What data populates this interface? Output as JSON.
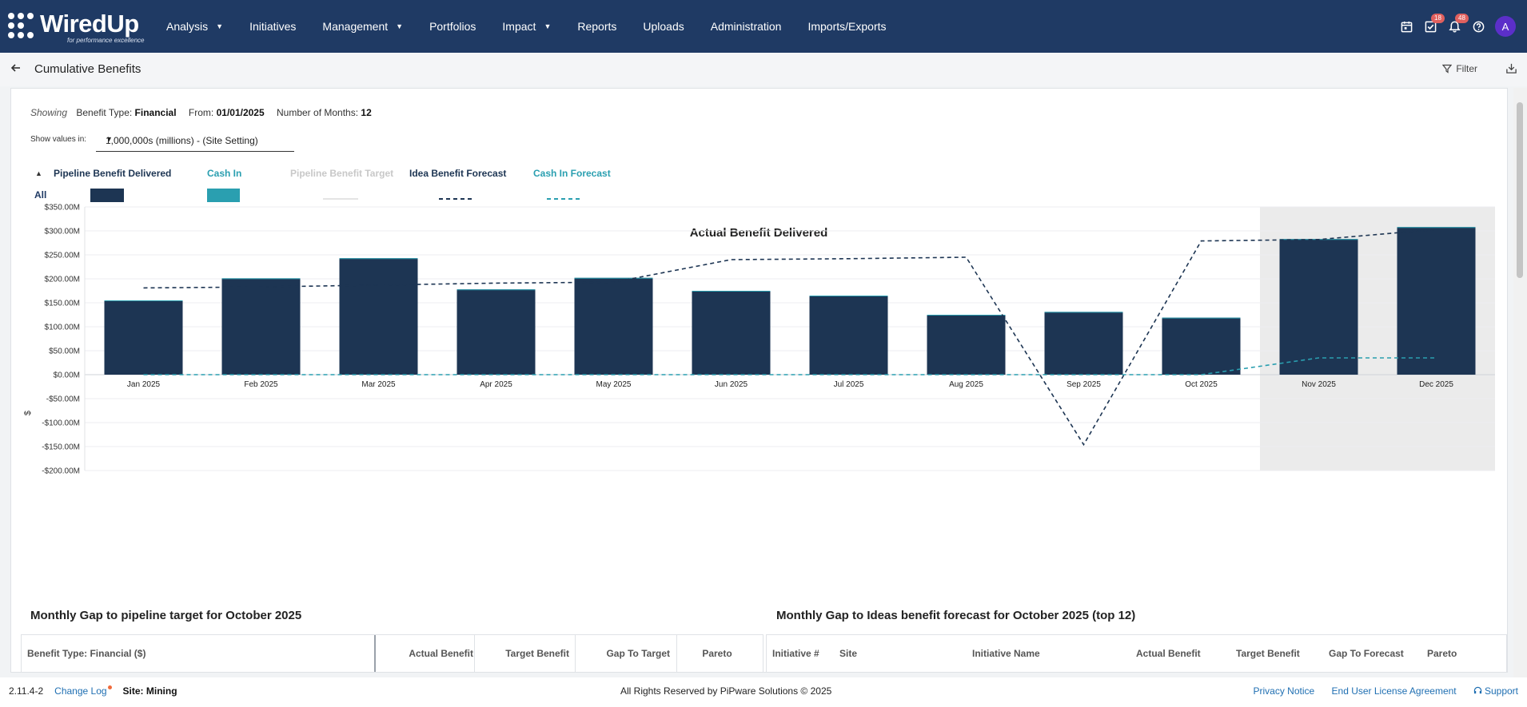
{
  "brand": {
    "name": "WiredUp",
    "tagline": "for performance excellence"
  },
  "nav": {
    "items": [
      {
        "label": "Analysis",
        "dropdown": true
      },
      {
        "label": "Initiatives",
        "dropdown": false
      },
      {
        "label": "Management",
        "dropdown": true
      },
      {
        "label": "Portfolios",
        "dropdown": false
      },
      {
        "label": "Impact",
        "dropdown": true
      },
      {
        "label": "Reports",
        "dropdown": false
      },
      {
        "label": "Uploads",
        "dropdown": false
      },
      {
        "label": "Administration",
        "dropdown": false
      },
      {
        "label": "Imports/Exports",
        "dropdown": false
      }
    ]
  },
  "top_icons": {
    "calendar_icon": "calendar-icon",
    "tasks_badge": "18",
    "notifications_badge": "48",
    "help_icon": "help-icon",
    "avatar_initial": "A"
  },
  "page": {
    "title": "Cumulative Benefits",
    "filter_label": "Filter"
  },
  "showing": {
    "prefix": "Showing",
    "benefit_type_label": "Benefit Type:",
    "benefit_type": "Financial",
    "from_label": "From:",
    "from": "01/01/2025",
    "months_label": "Number of Months:",
    "months": "12"
  },
  "show_values": {
    "label": "Show values in:",
    "selected": "1,000,000s (millions) - (Site Setting)"
  },
  "legend": {
    "all_label": "All",
    "entries": [
      {
        "name": "Pipeline Benefit Delivered",
        "color": "#1d3553",
        "style": "bar"
      },
      {
        "name": "Cash In",
        "color": "#2a9fb0",
        "style": "bar"
      },
      {
        "name": "Pipeline Benefit Target",
        "color": "#c8c8c8",
        "style": "line"
      },
      {
        "name": "Idea Benefit Forecast",
        "color": "#1d3553",
        "style": "dashed"
      },
      {
        "name": "Cash In Forecast",
        "color": "#2a9fb0",
        "style": "dashed"
      }
    ]
  },
  "chart_data": {
    "type": "bar",
    "title": "Actual Benefit Delivered",
    "ylabel": "$",
    "xlabel": "",
    "ylim": [
      -200,
      350
    ],
    "ytick_labels": [
      "$350.00M",
      "$300.00M",
      "$250.00M",
      "$200.00M",
      "$150.00M",
      "$100.00M",
      "$50.00M",
      "$0.00M",
      "-$50.00M",
      "-$100.00M",
      "-$150.00M",
      "-$200.00M"
    ],
    "yticks": [
      350,
      300,
      250,
      200,
      150,
      100,
      50,
      0,
      -50,
      -100,
      -150,
      -200
    ],
    "categories": [
      "Jan 2025",
      "Feb 2025",
      "Mar 2025",
      "Apr 2025",
      "May 2025",
      "Jun 2025",
      "Jul 2025",
      "Aug 2025",
      "Sep 2025",
      "Oct 2025",
      "Nov 2025",
      "Dec 2025"
    ],
    "series": [
      {
        "name": "Pipeline Benefit Delivered",
        "type": "bar",
        "color": "#1d3553",
        "values": [
          155,
          201,
          243,
          178,
          202,
          175,
          165,
          125,
          131,
          119,
          283,
          308
        ]
      },
      {
        "name": "Idea Benefit Forecast",
        "type": "dashed-line",
        "color": "#1d3553",
        "values": [
          181,
          183,
          187,
          191,
          193,
          240,
          242,
          245,
          -146,
          279,
          282,
          303
        ]
      },
      {
        "name": "Cash In Forecast",
        "type": "dashed-line",
        "color": "#2a9fb0",
        "values": [
          0,
          0,
          0,
          0,
          0,
          0,
          0,
          0,
          0,
          0,
          35,
          35
        ]
      }
    ],
    "shaded_categories": [
      "Nov 2025",
      "Dec 2025"
    ],
    "grid": true
  },
  "left_table": {
    "title": "Monthly Gap to pipeline target for October 2025",
    "columns": [
      "Benefit Type: Financial ($)",
      "Actual Benefit",
      "Target Benefit",
      "Gap To Target",
      "Pareto"
    ]
  },
  "right_table": {
    "title": "Monthly Gap to Ideas benefit forecast for October 2025 (top 12)",
    "columns": [
      "Initiative #",
      "Site",
      "Initiative Name",
      "Actual Benefit",
      "Target Benefit",
      "Gap To Forecast",
      "Pareto"
    ]
  },
  "footer": {
    "version": "2.11.4-2",
    "changelog": "Change Log",
    "site": "Site: Mining",
    "copyright": "All Rights Reserved by PiPware Solutions © 2025",
    "privacy": "Privacy Notice",
    "eula": "End User License Agreement",
    "support": "Support"
  }
}
